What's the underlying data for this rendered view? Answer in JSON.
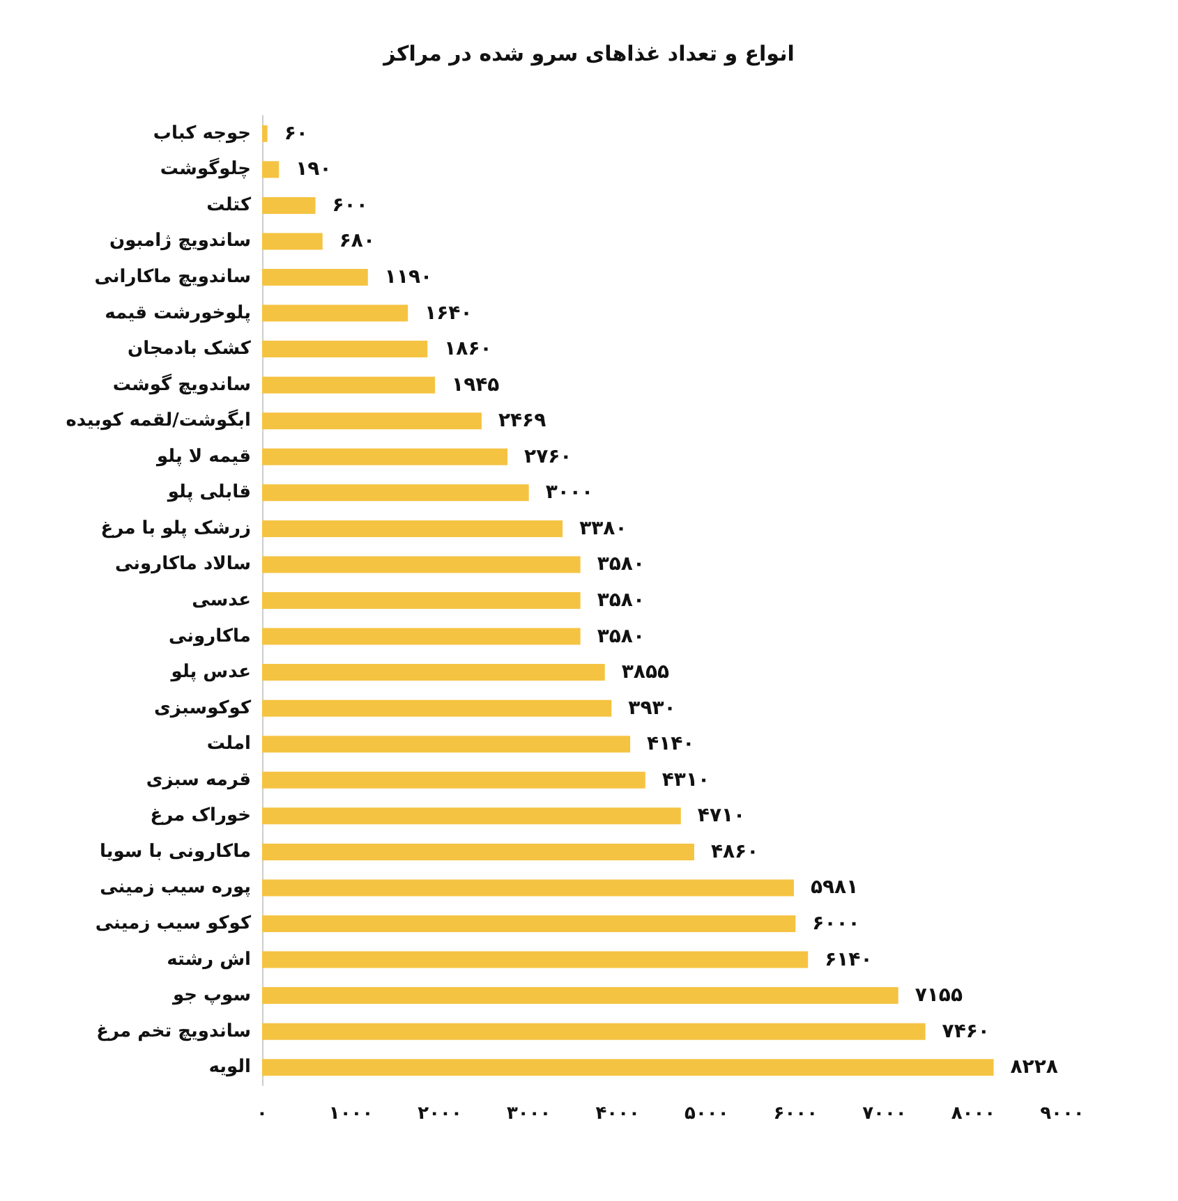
{
  "chart_data": {
    "type": "bar",
    "orientation": "horizontal",
    "title": "انواع و تعداد غذاهای سرو شده در مراکز",
    "categories": [
      "جوجه کباب",
      "چلوگوشت",
      "کتلت",
      "ساندویچ ژامبون",
      "ساندویچ ماکارانی",
      "پلوخورشت قیمه",
      "کشک بادمجان",
      "ساندویچ گوشت",
      "ابگوشت/لقمه کوبیده",
      "قیمه لا پلو",
      "قابلی پلو",
      "زرشک پلو با مرغ",
      "سالاد ماکارونی",
      "عدسی",
      "ماکارونی",
      "عدس پلو",
      "کوکوسبزی",
      "املت",
      "قرمه سبزی",
      "خوراک مرغ",
      "ماکارونی با سویا",
      "پوره سیب زمینی",
      "کوکو سیب زمینی",
      "اش رشته",
      "سوپ جو",
      "ساندویچ تخم مرغ",
      "الویه"
    ],
    "values": [
      60,
      190,
      600,
      680,
      1190,
      1640,
      1860,
      1945,
      2469,
      2760,
      3000,
      3380,
      3580,
      3580,
      3580,
      3855,
      3930,
      4140,
      4310,
      4710,
      4860,
      5981,
      6000,
      6140,
      7155,
      7460,
      8228
    ],
    "value_labels": [
      "۶۰",
      "۱۹۰",
      "۶۰۰",
      "۶۸۰",
      "۱۱۹۰",
      "۱۶۴۰",
      "۱۸۶۰",
      "۱۹۴۵",
      "۲۴۶۹",
      "۲۷۶۰",
      "۳۰۰۰",
      "۳۳۸۰",
      "۳۵۸۰",
      "۳۵۸۰",
      "۳۵۸۰",
      "۳۸۵۵",
      "۳۹۳۰",
      "۴۱۴۰",
      "۴۳۱۰",
      "۴۷۱۰",
      "۴۸۶۰",
      "۵۹۸۱",
      "۶۰۰۰",
      "۶۱۴۰",
      "۷۱۵۵",
      "۷۴۶۰",
      "۸۲۲۸"
    ],
    "color": "#f5c342",
    "xlim": [
      0,
      9000
    ],
    "xticks": [
      {
        "value": 0,
        "label": "۰"
      },
      {
        "value": 1000,
        "label": "۱۰۰۰"
      },
      {
        "value": 2000,
        "label": "۲۰۰۰"
      },
      {
        "value": 3000,
        "label": "۳۰۰۰"
      },
      {
        "value": 4000,
        "label": "۴۰۰۰"
      },
      {
        "value": 5000,
        "label": "۵۰۰۰"
      },
      {
        "value": 6000,
        "label": "۶۰۰۰"
      },
      {
        "value": 7000,
        "label": "۷۰۰۰"
      },
      {
        "value": 8000,
        "label": "۸۰۰۰"
      },
      {
        "value": 9000,
        "label": "۹۰۰۰"
      }
    ],
    "grid": false
  }
}
